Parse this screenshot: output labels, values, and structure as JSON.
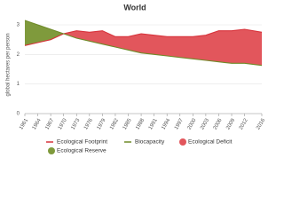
{
  "chart_data": {
    "type": "line",
    "title": "World",
    "y_label": "global hectares per person",
    "x": [
      1961,
      1964,
      1967,
      1970,
      1973,
      1976,
      1979,
      1982,
      1985,
      1988,
      1991,
      1994,
      1997,
      2000,
      2003,
      2006,
      2009,
      2012,
      2016
    ],
    "series": [
      {
        "name": "Ecological Footprint",
        "color": "#d7333b",
        "values": [
          2.3,
          2.4,
          2.5,
          2.7,
          2.8,
          2.75,
          2.8,
          2.6,
          2.6,
          2.7,
          2.65,
          2.6,
          2.6,
          2.6,
          2.65,
          2.8,
          2.8,
          2.85,
          2.75
        ]
      },
      {
        "name": "Biocapacity",
        "color": "#6f8a28",
        "values": [
          3.15,
          3.0,
          2.85,
          2.7,
          2.55,
          2.45,
          2.35,
          2.25,
          2.15,
          2.05,
          2.0,
          1.95,
          1.9,
          1.85,
          1.8,
          1.75,
          1.7,
          1.7,
          1.63
        ]
      }
    ],
    "fills": [
      {
        "name": "Ecological Deficit",
        "color": "#e2565c"
      },
      {
        "name": "Ecological Reserve",
        "color": "#7f9a3c"
      }
    ],
    "xlim": [
      1961,
      2016
    ],
    "xticks": [
      1961,
      1964,
      1967,
      1970,
      1973,
      1976,
      1979,
      1982,
      1985,
      1988,
      1991,
      1994,
      1997,
      2000,
      2003,
      2006,
      2009,
      2012,
      2016
    ],
    "ylim": [
      0,
      3.3
    ],
    "yticks": [
      0,
      1,
      2,
      3
    ],
    "grid": true
  }
}
